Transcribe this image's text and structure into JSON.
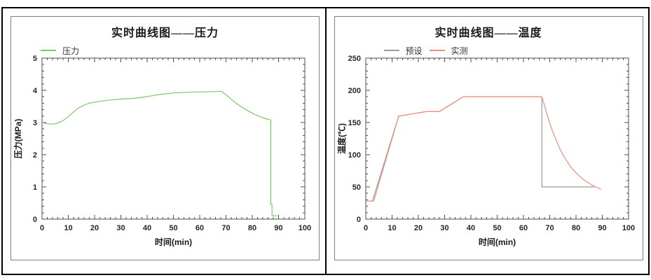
{
  "colors": {
    "frame": "#4d4d4d",
    "tick": "#4d4d4d",
    "panel_border": "#808080",
    "outer_border": "#000000",
    "pressure_line": "#7dc868",
    "preset_line": "#9b9b9b",
    "measured_line": "#ef8d7e"
  },
  "chart_data": [
    {
      "type": "line",
      "title": "实时曲线图——压力",
      "xlabel": "时间(min)",
      "ylabel": "压力(MPa)",
      "xlim": [
        0,
        100
      ],
      "ylim": [
        0,
        5
      ],
      "x_ticks": [
        0,
        10,
        20,
        30,
        40,
        50,
        60,
        70,
        80,
        90,
        100
      ],
      "y_ticks": [
        0,
        1,
        2,
        3,
        4,
        5
      ],
      "x_minor_step": 2,
      "y_minor_step": 0.2,
      "grid": false,
      "legend_position": "top-left",
      "series": [
        {
          "name": "压力",
          "color": "#7dc868",
          "points": [
            [
              0,
              3.0
            ],
            [
              1,
              2.98
            ],
            [
              2,
              2.96
            ],
            [
              4,
              2.95
            ],
            [
              6,
              2.98
            ],
            [
              8,
              3.06
            ],
            [
              10,
              3.18
            ],
            [
              12,
              3.33
            ],
            [
              14,
              3.46
            ],
            [
              16,
              3.54
            ],
            [
              18,
              3.6
            ],
            [
              20,
              3.63
            ],
            [
              23,
              3.67
            ],
            [
              26,
              3.7
            ],
            [
              29,
              3.72
            ],
            [
              32,
              3.74
            ],
            [
              35,
              3.75
            ],
            [
              38,
              3.78
            ],
            [
              41,
              3.82
            ],
            [
              44,
              3.86
            ],
            [
              47,
              3.89
            ],
            [
              50,
              3.92
            ],
            [
              53,
              3.93
            ],
            [
              56,
              3.94
            ],
            [
              59,
              3.95
            ],
            [
              62,
              3.95
            ],
            [
              64,
              3.96
            ],
            [
              66,
              3.96
            ],
            [
              68,
              3.97
            ],
            [
              69,
              3.92
            ],
            [
              70,
              3.86
            ],
            [
              71,
              3.79
            ],
            [
              72,
              3.72
            ],
            [
              73,
              3.65
            ],
            [
              74,
              3.59
            ],
            [
              75,
              3.53
            ],
            [
              76,
              3.48
            ],
            [
              77,
              3.43
            ],
            [
              78,
              3.38
            ],
            [
              79,
              3.33
            ],
            [
              80,
              3.29
            ],
            [
              81,
              3.25
            ],
            [
              82,
              3.21
            ],
            [
              83,
              3.18
            ],
            [
              84,
              3.15
            ],
            [
              85,
              3.12
            ],
            [
              86,
              3.1
            ],
            [
              87,
              3.08
            ],
            [
              87,
              0.45
            ],
            [
              87.5,
              0.45
            ],
            [
              87.5,
              0.12
            ],
            [
              88,
              0.1
            ],
            [
              89.5,
              0.1
            ]
          ]
        }
      ]
    },
    {
      "type": "line",
      "title": "实时曲线图——温度",
      "xlabel": "时间(min)",
      "ylabel": "温度(℃)",
      "xlim": [
        0,
        100
      ],
      "ylim": [
        0,
        250
      ],
      "x_ticks": [
        0,
        10,
        20,
        30,
        40,
        50,
        60,
        70,
        80,
        90,
        100
      ],
      "y_ticks": [
        0,
        50,
        100,
        150,
        200,
        250
      ],
      "x_minor_step": 2,
      "y_minor_step": 10,
      "grid": false,
      "legend_position": "top-left",
      "series": [
        {
          "name": "预设",
          "color": "#9b9b9b",
          "points": [
            [
              0,
              28
            ],
            [
              2.5,
              28
            ],
            [
              12.5,
              160
            ],
            [
              23,
              167
            ],
            [
              28,
              167
            ],
            [
              37,
              190
            ],
            [
              67,
              190
            ],
            [
              67,
              50
            ],
            [
              87,
              50
            ]
          ]
        },
        {
          "name": "实测",
          "color": "#ef8d7e",
          "points": [
            [
              0,
              28
            ],
            [
              3,
              28
            ],
            [
              12.5,
              160
            ],
            [
              23,
              167
            ],
            [
              28,
              167
            ],
            [
              37,
              190
            ],
            [
              67,
              190
            ],
            [
              68,
              176
            ],
            [
              69,
              162
            ],
            [
              70,
              149
            ],
            [
              71,
              137
            ],
            [
              72,
              127
            ],
            [
              73,
              117
            ],
            [
              74,
              108
            ],
            [
              75,
              100
            ],
            [
              76,
              93
            ],
            [
              77,
              87
            ],
            [
              78,
              81
            ],
            [
              79,
              76
            ],
            [
              80,
              72
            ],
            [
              81,
              68
            ],
            [
              82,
              64
            ],
            [
              83,
              61
            ],
            [
              84,
              58
            ],
            [
              85,
              55.5
            ],
            [
              86,
              53
            ],
            [
              87,
              51
            ],
            [
              88,
              49
            ],
            [
              89,
              47.5
            ],
            [
              89.5,
              46
            ]
          ]
        }
      ]
    }
  ]
}
